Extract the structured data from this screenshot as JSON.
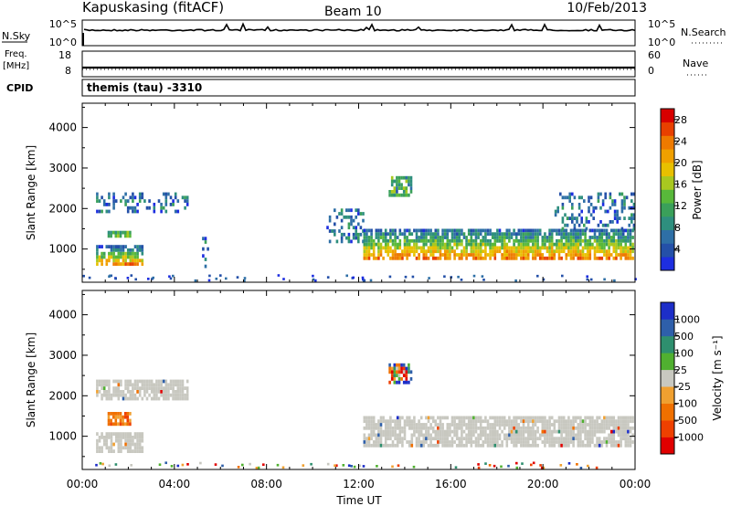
{
  "header": {
    "site": "Kapuskasing (fitACF)",
    "beam": "Beam 10",
    "date": "10/Feb/2013"
  },
  "params": {
    "nsky_label": "N.Sky",
    "nsearch_label": "N.Search",
    "left_scale_top": "10^5",
    "left_scale_bottom": "10^0",
    "right_scale_top": "10^5",
    "right_scale_bottom": "10^0",
    "freq_label": "Freq.",
    "freq_unit": "[MHz]",
    "freq_top": "18",
    "freq_bottom": "8",
    "nave_label": "Nave",
    "nave_top": "60",
    "nave_bottom": "0",
    "cpid_label": "CPID",
    "cpid_text": "themis (tau) -3310"
  },
  "colors": {
    "power": [
      "#1d2ee0",
      "#2450a8",
      "#2e6fa6",
      "#2e8f7e",
      "#3aa05a",
      "#58b83a",
      "#a8c820",
      "#e8c000",
      "#f0a000",
      "#ee7a00",
      "#e84000",
      "#d80000"
    ],
    "velocity": [
      "#e00000",
      "#ee4000",
      "#f07000",
      "#f0a030",
      "#c8c8c0",
      "#50b030",
      "#2e8f6e",
      "#2e5faa",
      "#1d2ec8"
    ],
    "velocity_gray": "#c8c8c0"
  },
  "chart_data": [
    {
      "type": "heatmap",
      "name": "power",
      "xlabel": "Time UT",
      "ylabel": "Slant Range [km]",
      "x_ticks": [
        "00:00",
        "04:00",
        "08:00",
        "12:00",
        "16:00",
        "20:00",
        "00:00"
      ],
      "xlim_hours": [
        0,
        24
      ],
      "y_ticks": [
        1000,
        2000,
        3000,
        4000
      ],
      "ylim": [
        180,
        4600
      ],
      "colorbar": {
        "label": "Power [dB]",
        "ticks": [
          "4",
          "8",
          "12",
          "16",
          "20",
          "24",
          "28"
        ],
        "range": [
          0,
          30
        ]
      },
      "regions": [
        {
          "t": [
            0.6,
            2.7
          ],
          "range": [
            620,
            1100
          ],
          "level": "strong"
        },
        {
          "t": [
            0.6,
            4.6
          ],
          "range": [
            1900,
            2400
          ],
          "level": "weak"
        },
        {
          "t": [
            1.1,
            2.1
          ],
          "range": [
            1250,
            1450
          ],
          "level": "medium"
        },
        {
          "t": [
            5.2,
            5.5
          ],
          "range": [
            550,
            1300
          ],
          "level": "weak"
        },
        {
          "t": [
            10.6,
            12.2
          ],
          "range": [
            1150,
            2000
          ],
          "level": "weak"
        },
        {
          "t": [
            12.2,
            24.0
          ],
          "range": [
            700,
            1500
          ],
          "level": "strong"
        },
        {
          "t": [
            13.3,
            14.3
          ],
          "range": [
            2300,
            2800
          ],
          "level": "medium"
        },
        {
          "t": [
            20.5,
            24.0
          ],
          "range": [
            1500,
            2400
          ],
          "level": "weak"
        }
      ]
    },
    {
      "type": "heatmap",
      "name": "velocity",
      "xlabel": "Time UT",
      "ylabel": "Slant Range [km]",
      "x_ticks": [
        "00:00",
        "04:00",
        "08:00",
        "12:00",
        "16:00",
        "20:00",
        "00:00"
      ],
      "xlim_hours": [
        0,
        24
      ],
      "y_ticks": [
        1000,
        2000,
        3000,
        4000
      ],
      "ylim": [
        180,
        4600
      ],
      "colorbar": {
        "label": "Velocity [m s⁻¹]",
        "ticks": [
          "1000",
          "500",
          "100",
          "25",
          "-25",
          "-100",
          "-500",
          "-1000"
        ]
      },
      "regions": [
        {
          "t": [
            0.6,
            2.7
          ],
          "range": [
            620,
            1100
          ],
          "level": "near-zero"
        },
        {
          "t": [
            0.6,
            4.6
          ],
          "range": [
            1900,
            2400
          ],
          "level": "near-zero"
        },
        {
          "t": [
            1.1,
            2.1
          ],
          "range": [
            1250,
            1600
          ],
          "level": "negative"
        },
        {
          "t": [
            12.2,
            24.0
          ],
          "range": [
            700,
            1500
          ],
          "level": "near-zero"
        },
        {
          "t": [
            13.3,
            14.3
          ],
          "range": [
            2300,
            2800
          ],
          "level": "mixed"
        }
      ]
    }
  ]
}
